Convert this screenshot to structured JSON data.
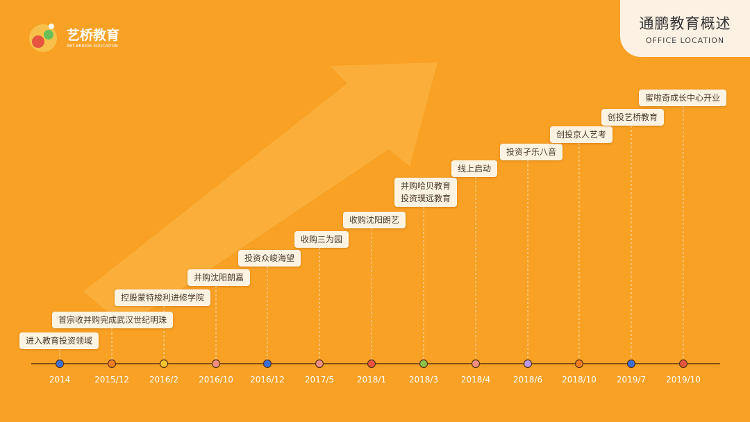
{
  "logo": {
    "name": "艺桥教育",
    "subtitle": "ART BRIDGE EDUCATION"
  },
  "header": {
    "title": "通鹏教育概述",
    "subtitle": "OFFICE LOCATION"
  },
  "timeline": {
    "events": [
      {
        "date": "2014",
        "lines": [
          "进入教育投资领域"
        ],
        "color": "#3b6fd8"
      },
      {
        "date": "2015/12",
        "lines": [
          "首宗收并购完成武汉世纪明珠"
        ],
        "color": "#f27e22"
      },
      {
        "date": "2016/2",
        "lines": [
          "控股蒙特梭利进修学院"
        ],
        "color": "#f5c431"
      },
      {
        "date": "2016/10",
        "lines": [
          "并购沈阳朗嘉"
        ],
        "color": "#f08f80"
      },
      {
        "date": "2016/12",
        "lines": [
          "投资众峻海望"
        ],
        "color": "#3b6fd8"
      },
      {
        "date": "2017/5",
        "lines": [
          "收购三为园"
        ],
        "color": "#f08f80"
      },
      {
        "date": "2018/1",
        "lines": [
          "收购沈阳朗艺"
        ],
        "color": "#e8553f"
      },
      {
        "date": "2018/3",
        "lines": [
          "并购哈贝教育",
          "投资璞远教育"
        ],
        "color": "#8bc34a"
      },
      {
        "date": "2018/4",
        "lines": [
          "线上启动"
        ],
        "color": "#f08f80"
      },
      {
        "date": "2018/6",
        "lines": [
          "投资孑乐八音"
        ],
        "color": "#b69ae8"
      },
      {
        "date": "2018/10",
        "lines": [
          "创投京人艺考"
        ],
        "color": "#f27e22"
      },
      {
        "date": "2019/7",
        "lines": [
          "创投艺桥教育"
        ],
        "color": "#3b6fd8"
      },
      {
        "date": "2019/10",
        "lines": [
          "蜜啦奇成长中心开业"
        ],
        "color": "#e8553f"
      }
    ]
  }
}
